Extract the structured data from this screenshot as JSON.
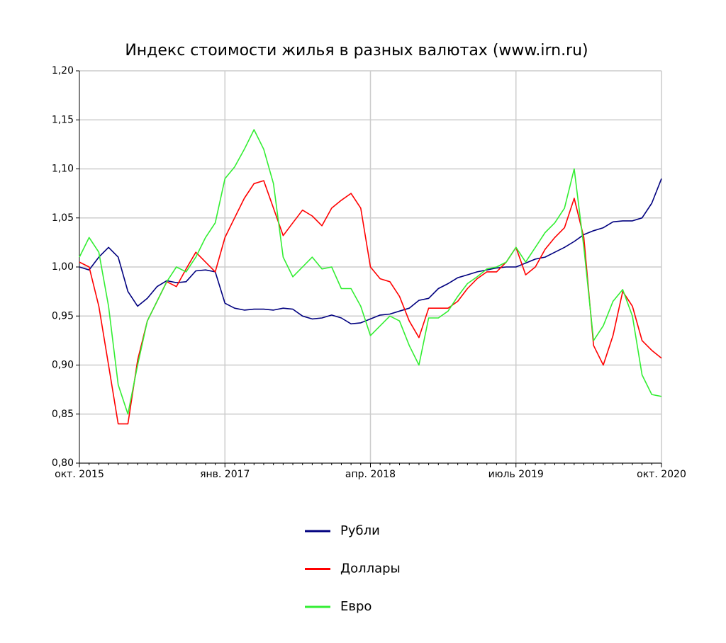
{
  "chart_data": {
    "type": "line",
    "title": "Индекс стоимости жилья в разных валютах (www.irn.ru)",
    "categories": [
      "окт. 2015",
      null,
      null,
      null,
      null,
      null,
      null,
      null,
      null,
      null,
      null,
      null,
      null,
      null,
      null,
      "янв. 2017",
      null,
      null,
      null,
      null,
      null,
      null,
      null,
      null,
      null,
      null,
      null,
      null,
      null,
      null,
      "апр. 2018",
      null,
      null,
      null,
      null,
      null,
      null,
      null,
      null,
      null,
      null,
      null,
      null,
      null,
      null,
      "июль 2019",
      null,
      null,
      null,
      null,
      null,
      null,
      null,
      null,
      null,
      null,
      null,
      null,
      null,
      null,
      "окт. 2020"
    ],
    "series": [
      {
        "name": "Рубли",
        "color": "#00007f",
        "values": [
          1.0,
          0.997,
          1.01,
          1.02,
          1.01,
          0.975,
          0.96,
          0.968,
          0.98,
          0.986,
          0.984,
          0.985,
          0.996,
          0.997,
          0.995,
          0.963,
          0.958,
          0.956,
          0.957,
          0.957,
          0.956,
          0.958,
          0.957,
          0.95,
          0.947,
          0.948,
          0.951,
          0.948,
          0.942,
          0.943,
          0.947,
          0.951,
          0.952,
          0.955,
          0.958,
          0.966,
          0.968,
          0.978,
          0.983,
          0.989,
          0.992,
          0.995,
          0.997,
          0.999,
          1.0,
          1.0,
          1.004,
          1.008,
          1.01,
          1.015,
          1.02,
          1.026,
          1.033,
          1.037,
          1.04,
          1.046,
          1.047,
          1.047,
          1.05,
          1.065,
          1.09
        ]
      },
      {
        "name": "Доллары",
        "color": "#ff0000",
        "values": [
          1.005,
          1.0,
          0.96,
          0.9,
          0.84,
          0.84,
          0.905,
          0.945,
          0.965,
          0.985,
          0.98,
          0.998,
          1.015,
          1.005,
          0.995,
          1.03,
          1.05,
          1.07,
          1.085,
          1.088,
          1.06,
          1.032,
          1.045,
          1.058,
          1.052,
          1.042,
          1.06,
          1.068,
          1.075,
          1.06,
          1.0,
          0.988,
          0.985,
          0.97,
          0.945,
          0.928,
          0.958,
          0.958,
          0.958,
          0.965,
          0.978,
          0.988,
          0.995,
          0.995,
          1.005,
          1.02,
          0.992,
          1.0,
          1.018,
          1.03,
          1.04,
          1.07,
          1.03,
          0.92,
          0.9,
          0.93,
          0.975,
          0.96,
          0.925,
          0.915,
          0.907
        ]
      },
      {
        "name": "Евро",
        "color": "#33ee33",
        "values": [
          1.01,
          1.03,
          1.015,
          0.96,
          0.88,
          0.85,
          0.9,
          0.945,
          0.965,
          0.985,
          1.0,
          0.995,
          1.01,
          1.03,
          1.045,
          1.09,
          1.102,
          1.12,
          1.14,
          1.12,
          1.085,
          1.01,
          0.99,
          1.0,
          1.01,
          0.998,
          1.0,
          0.978,
          0.978,
          0.96,
          0.93,
          0.94,
          0.95,
          0.945,
          0.92,
          0.9,
          0.948,
          0.948,
          0.955,
          0.97,
          0.983,
          0.99,
          0.998,
          1.0,
          1.005,
          1.02,
          1.005,
          1.02,
          1.035,
          1.045,
          1.06,
          1.1,
          1.02,
          0.925,
          0.94,
          0.965,
          0.977,
          0.95,
          0.89,
          0.87,
          0.868
        ]
      }
    ],
    "ylim": [
      0.8,
      1.2
    ],
    "yticks": [
      {
        "value": 0.8,
        "label": "0,80"
      },
      {
        "value": 0.85,
        "label": "0,85"
      },
      {
        "value": 0.9,
        "label": "0,90"
      },
      {
        "value": 0.95,
        "label": "0,95"
      },
      {
        "value": 1.0,
        "label": "1,00"
      },
      {
        "value": 1.05,
        "label": "1,05"
      },
      {
        "value": 1.1,
        "label": "1,10"
      },
      {
        "value": 1.15,
        "label": "1,15"
      },
      {
        "value": 1.2,
        "label": "1,20"
      }
    ],
    "grid": true,
    "legend": "bottom"
  }
}
